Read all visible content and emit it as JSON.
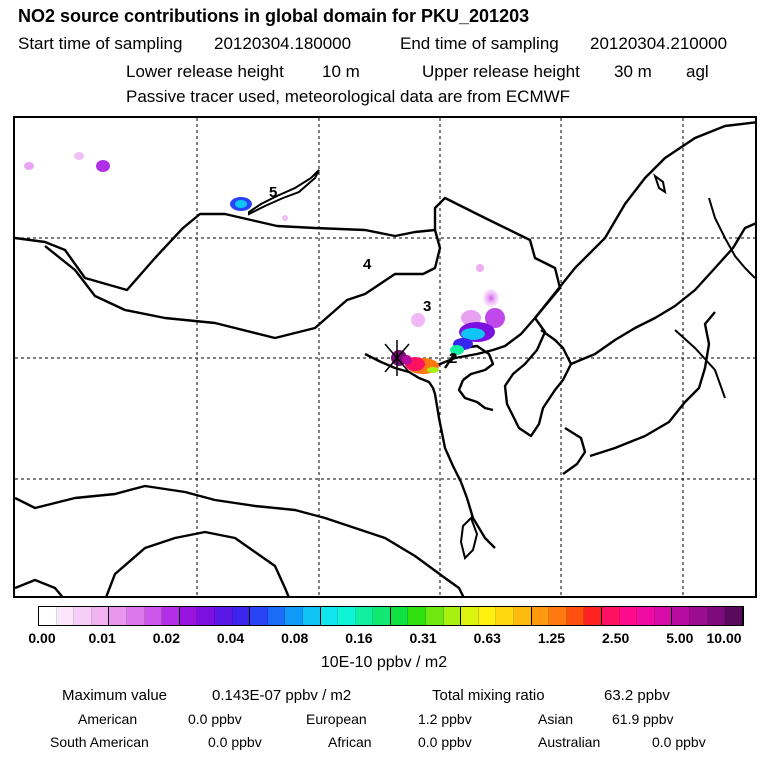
{
  "header": {
    "title": "NO2 source contributions in global domain for PKU_201203",
    "start_label": "Start time of sampling",
    "start_value": "20120304.180000",
    "end_label": "End time of sampling",
    "end_value": "20120304.210000",
    "lower_label": "Lower release height",
    "lower_value": "10 m",
    "upper_label": "Upper release height",
    "upper_value": "30 m",
    "upper_unit": "agl",
    "note": "Passive tracer used, meteorological data are from ECMWF"
  },
  "map": {
    "region_labels": [
      "5",
      "4",
      "3",
      "2"
    ],
    "colors": {
      "coast": "#000000",
      "grid": "#000000",
      "background": "#ffffff"
    }
  },
  "colorbar": {
    "tick_labels": [
      "0.00",
      "0.01",
      "0.02",
      "0.04",
      "0.08",
      "0.16",
      "0.31",
      "0.63",
      "1.25",
      "2.50",
      "5.00",
      "10.00"
    ],
    "unit": "10E-10 ppbv / m2",
    "colors": [
      "#ffffff",
      "#fbe6fb",
      "#f6cdf6",
      "#f0b3f0",
      "#e896ee",
      "#dd78ec",
      "#cc55ea",
      "#b22fe6",
      "#9a14e0",
      "#7b10e0",
      "#5a18e6",
      "#3a24ee",
      "#2a44f5",
      "#1c6cf8",
      "#109af8",
      "#10c4f6",
      "#10e6f0",
      "#10f4d6",
      "#10f0a0",
      "#10e870",
      "#10e040",
      "#30e010",
      "#70e810",
      "#a8f010",
      "#dcf410",
      "#fff010",
      "#ffd810",
      "#ffba10",
      "#ff9a10",
      "#ff7810",
      "#ff5010",
      "#ff2020",
      "#ff1060",
      "#ff0c8c",
      "#f00ca4",
      "#d40ca8",
      "#b80ca0",
      "#9a0c90",
      "#7c0c7c",
      "#5a0a5a"
    ]
  },
  "footer": {
    "max_label": "Maximum value",
    "max_value": "0.143E-07 ppbv / m2",
    "total_label": "Total mixing ratio",
    "total_value": "63.2 ppbv",
    "regions": [
      {
        "name": "American",
        "value": "0.0 ppbv"
      },
      {
        "name": "European",
        "value": "1.2 ppbv"
      },
      {
        "name": "Asian",
        "value": "61.9 ppbv"
      },
      {
        "name": "South American",
        "value": "0.0 ppbv"
      },
      {
        "name": "African",
        "value": "0.0 ppbv"
      },
      {
        "name": "Australian",
        "value": "0.0 ppbv"
      }
    ]
  }
}
